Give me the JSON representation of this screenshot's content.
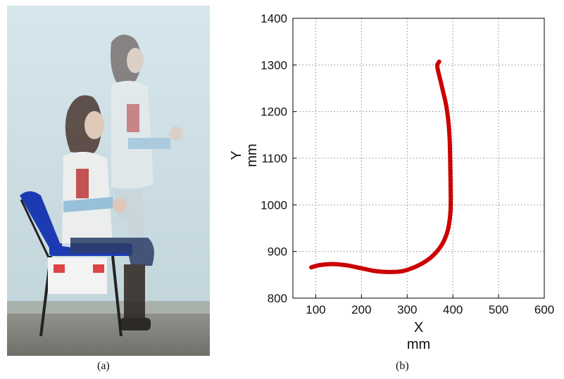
{
  "captions": {
    "a": "(a)",
    "b": "(b)"
  },
  "chart_data": {
    "type": "line",
    "xlabel": "X",
    "xunit": "mm",
    "ylabel": "Y",
    "yunit": "mm",
    "xlim": [
      50,
      600
    ],
    "ylim": [
      800,
      1400
    ],
    "xticks": [
      100,
      200,
      300,
      400,
      500,
      600
    ],
    "yticks": [
      800,
      900,
      1000,
      1100,
      1200,
      1300,
      1400
    ],
    "grid": true,
    "line_color": "#cc0000",
    "series": [
      {
        "x": [
          90,
          110,
          140,
          170,
          200,
          230,
          260,
          290,
          320,
          345,
          365,
          380,
          390,
          395,
          395,
          394,
          393,
          390,
          385,
          378,
          372,
          367,
          366,
          370
        ],
        "y": [
          866,
          871,
          873,
          870,
          864,
          858,
          856,
          858,
          868,
          882,
          900,
          922,
          950,
          990,
          1040,
          1100,
          1140,
          1180,
          1215,
          1245,
          1270,
          1290,
          1300,
          1307
        ]
      }
    ]
  }
}
